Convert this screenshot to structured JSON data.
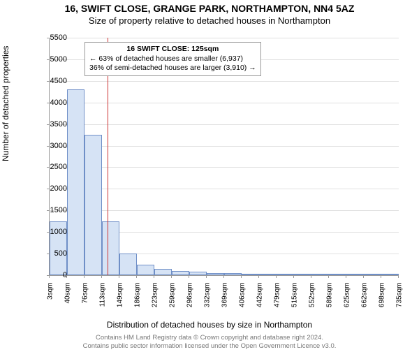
{
  "title": "16, SWIFT CLOSE, GRANGE PARK, NORTHAMPTON, NN4 5AZ",
  "subtitle": "Size of property relative to detached houses in Northampton",
  "chart": {
    "type": "histogram",
    "ylabel": "Number of detached properties",
    "xlabel": "Distribution of detached houses by size in Northampton",
    "ylim": [
      0,
      5500
    ],
    "ytick_step": 500,
    "background_color": "#ffffff",
    "grid_color": "#e0e0e0",
    "axis_color": "#999999",
    "bar_fill": "#d6e3f5",
    "bar_stroke": "#6f8fc7",
    "marker_color": "#cc3333",
    "marker_value_sqm": 125,
    "x_range": [
      3,
      735
    ],
    "values": [
      1250,
      4300,
      3250,
      1250,
      500,
      250,
      150,
      100,
      75,
      50,
      50,
      30,
      20,
      15,
      10,
      10,
      5,
      5,
      5,
      5
    ],
    "x_labels": [
      "3sqm",
      "40sqm",
      "76sqm",
      "113sqm",
      "149sqm",
      "186sqm",
      "223sqm",
      "259sqm",
      "296sqm",
      "332sqm",
      "369sqm",
      "406sqm",
      "442sqm",
      "479sqm",
      "515sqm",
      "552sqm",
      "589sqm",
      "625sqm",
      "662sqm",
      "698sqm",
      "735sqm"
    ],
    "label_fontsize": 11,
    "title_fontsize": 14
  },
  "annotation": {
    "line1": "16 SWIFT CLOSE: 125sqm",
    "line2": "← 63% of detached houses are smaller (6,937)",
    "line3": "36% of semi-detached houses are larger (3,910) →"
  },
  "footer": {
    "line1": "Contains HM Land Registry data © Crown copyright and database right 2024.",
    "line2": "Contains public sector information licensed under the Open Government Licence v3.0."
  }
}
